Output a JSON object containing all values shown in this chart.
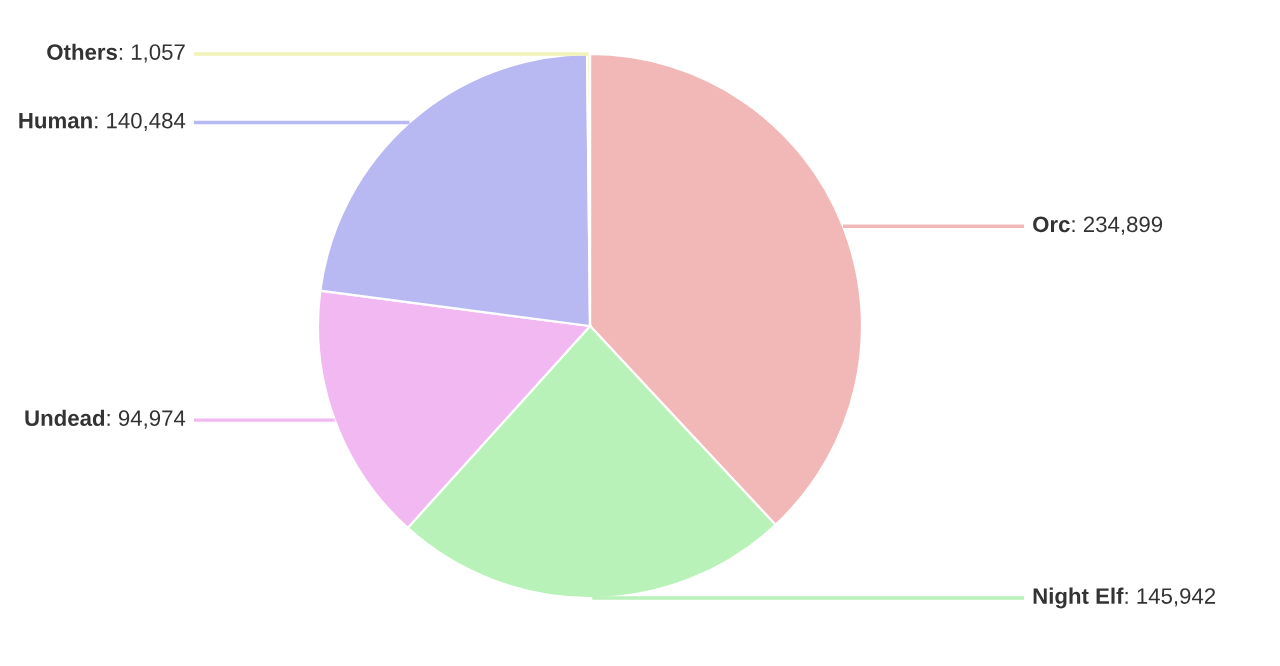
{
  "chart_data": {
    "type": "pie",
    "categories": [
      "Orc",
      "Night Elf",
      "Undead",
      "Human",
      "Others"
    ],
    "values": [
      234899,
      145942,
      94974,
      140484,
      1057
    ],
    "colors": [
      "#f2b8b8",
      "#b8f2b8",
      "#f2b8f2",
      "#b8b8f2",
      "#f2f2b8"
    ],
    "value_labels": [
      ": 234,899",
      ": 145,942",
      ": 94,974",
      ": 140,484",
      ": 1,057"
    ]
  }
}
